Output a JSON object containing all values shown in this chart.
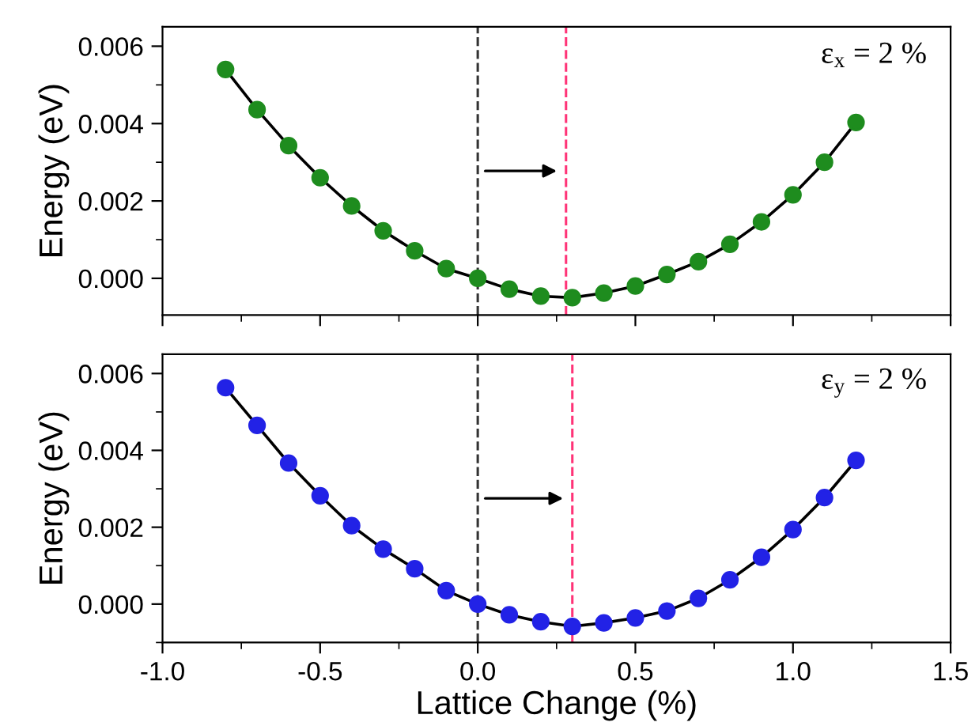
{
  "chart_data": [
    {
      "type": "line",
      "ylabel": "Energy (eV)",
      "x": [
        -0.8,
        -0.7,
        -0.6,
        -0.5,
        -0.4,
        -0.3,
        -0.2,
        -0.1,
        0,
        0.1,
        0.2,
        0.3,
        0.4,
        0.5,
        0.6,
        0.7,
        0.8,
        0.9,
        1.0,
        1.1,
        1.2
      ],
      "series": [
        {
          "color": "#1e8c1e",
          "values": [
            0.0054,
            0.00436,
            0.00343,
            0.0026,
            0.00187,
            0.00123,
            0.00071,
            0.00025,
            0,
            -0.00028,
            -0.00046,
            -0.0005,
            -0.00038,
            -0.0002,
            0.0001,
            0.00043,
            0.00088,
            0.00146,
            0.00216,
            0.003,
            0.00403
          ]
        }
      ],
      "marker": "circle",
      "line_style": "solid",
      "xlim": [
        -1.0,
        1.5
      ],
      "xticks": [
        -1.0,
        -0.5,
        0.0,
        0.5,
        1.0,
        1.5
      ],
      "ylim": [
        -0.00095,
        0.0065
      ],
      "yticks": [
        {
          "value": 0,
          "label": "0.000"
        },
        {
          "value": 0.002,
          "label": "0.002"
        },
        {
          "value": 0.004,
          "label": "0.004"
        },
        {
          "value": 0.006,
          "label": "0.006"
        }
      ],
      "tick_labels": "y",
      "grid": false,
      "legend": false,
      "ref_lines": [
        {
          "axis": "x",
          "value": 0,
          "color": "#333333",
          "line_style": "dashed"
        },
        {
          "axis": "x",
          "value": 0.28,
          "color": "#ff3377",
          "line_style": "dashed"
        }
      ],
      "annotations": [
        "ε$_{x}$ = 2 %"
      ]
    },
    {
      "type": "line",
      "xlabel": "Lattice Change (%)",
      "ylabel": "Energy (eV)",
      "x": [
        -0.8,
        -0.7,
        -0.6,
        -0.5,
        -0.4,
        -0.3,
        -0.2,
        -0.1,
        0,
        0.1,
        0.2,
        0.3,
        0.4,
        0.5,
        0.6,
        0.7,
        0.8,
        0.9,
        1.0,
        1.1,
        1.2
      ],
      "series": [
        {
          "color": "#2222e6",
          "values": [
            0.00563,
            0.00465,
            0.00367,
            0.00282,
            0.00204,
            0.00143,
            0.00092,
            0.00035,
            0,
            -0.00028,
            -0.00046,
            -0.00058,
            -0.00049,
            -0.00036,
            -0.00018,
            0.00015,
            0.00063,
            0.00122,
            0.00194,
            0.00277,
            0.00374
          ]
        }
      ],
      "marker": "circle",
      "line_style": "solid",
      "xlim": [
        -1.0,
        1.5
      ],
      "xticks": [
        {
          "value": -1.0,
          "label": "-1.0"
        },
        {
          "value": -0.5,
          "label": "-0.5"
        },
        {
          "value": 0.0,
          "label": "0.0"
        },
        {
          "value": 0.5,
          "label": "0.5"
        },
        {
          "value": 1.0,
          "label": "1.0"
        },
        {
          "value": 1.5,
          "label": "1.5"
        }
      ],
      "ylim": [
        -0.001,
        0.0065
      ],
      "yticks": [
        {
          "value": 0,
          "label": "0.000"
        },
        {
          "value": 0.002,
          "label": "0.002"
        },
        {
          "value": 0.004,
          "label": "0.004"
        },
        {
          "value": 0.006,
          "label": "0.006"
        }
      ],
      "grid": false,
      "legend": false,
      "ref_lines": [
        {
          "axis": "x",
          "value": 0,
          "color": "#333333",
          "line_style": "dashed"
        },
        {
          "axis": "x",
          "value": 0.3,
          "color": "#ff3377",
          "line_style": "dashed"
        }
      ],
      "annotations": [
        "ε$_{y}$ = 2 %"
      ]
    }
  ]
}
